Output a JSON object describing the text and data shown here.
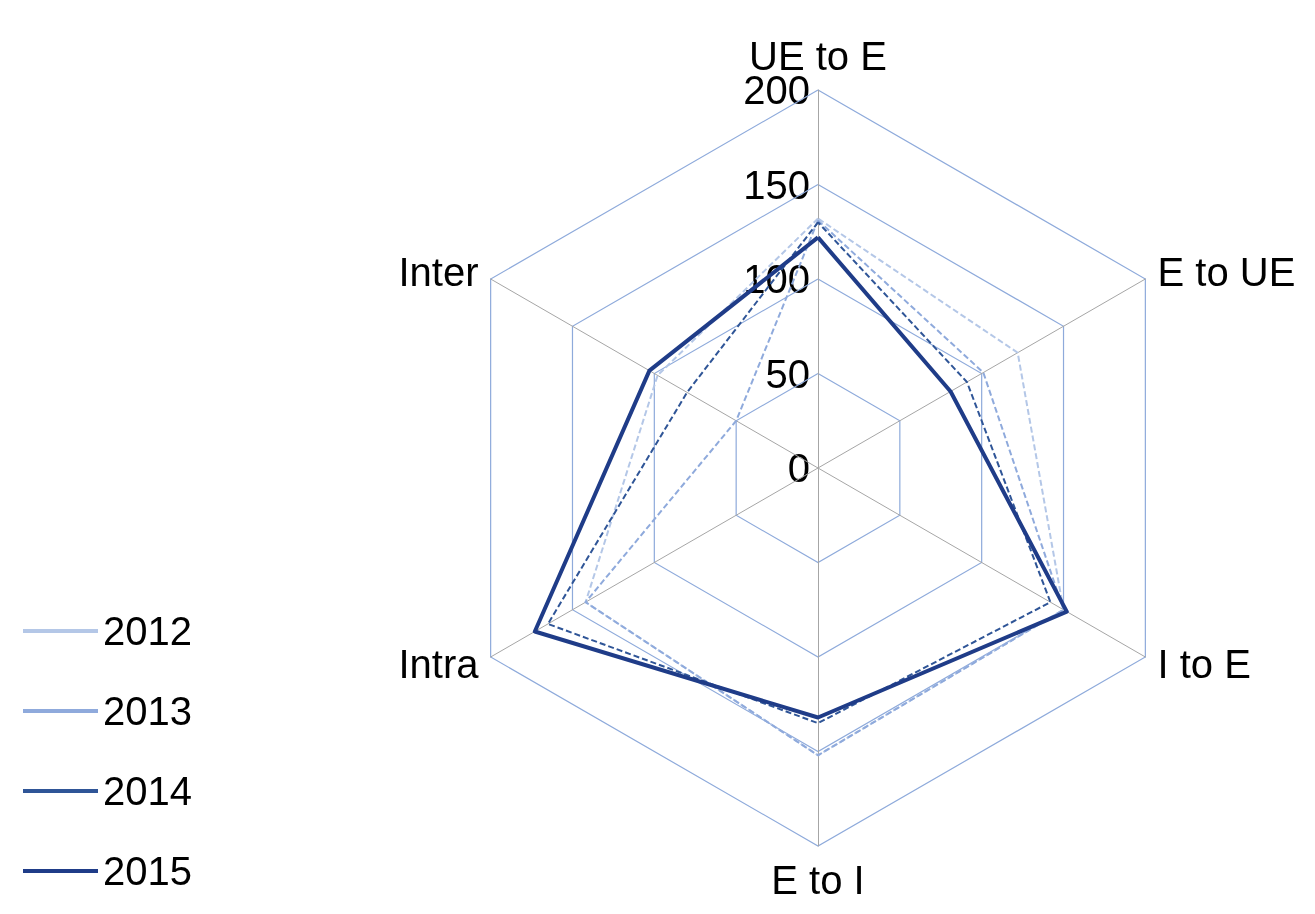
{
  "chart_data": {
    "type": "radar",
    "categories": [
      "UE to E",
      "E to UE",
      "I to E",
      "E to I",
      "Intra",
      "Inter"
    ],
    "ylim": [
      0,
      200
    ],
    "yticks": [
      0,
      50,
      100,
      150,
      200
    ],
    "grid": true,
    "legend": "bottom left",
    "series": [
      {
        "name": "2012",
        "color": "#b4c7e7",
        "line_style": "dashed",
        "values": [
          132,
          122,
          150,
          152,
          142,
          98
        ]
      },
      {
        "name": "2013",
        "color": "#8faadc",
        "line_style": "dashed",
        "values": [
          131,
          101,
          150,
          152,
          142,
          50
        ]
      },
      {
        "name": "2014",
        "color": "#2f5597",
        "line_style": "dashed",
        "values": [
          130,
          91,
          142,
          135,
          165,
          80
        ]
      },
      {
        "name": "2015",
        "color": "#1f3c88",
        "line_style": "solid",
        "values": [
          122,
          81,
          152,
          132,
          173,
          103
        ]
      }
    ]
  }
}
